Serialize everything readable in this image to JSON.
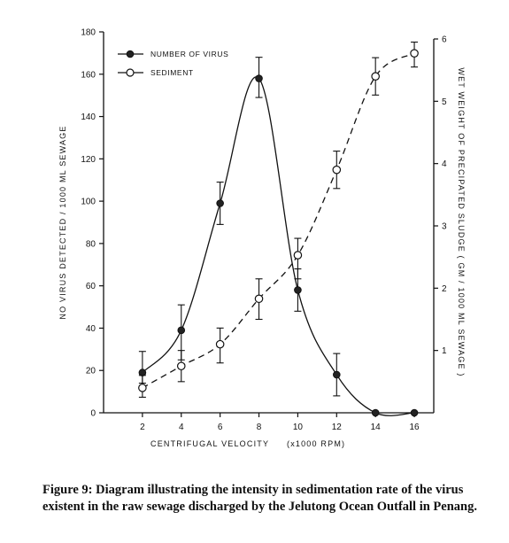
{
  "chart_data": {
    "type": "line",
    "x": [
      2,
      4,
      6,
      8,
      10,
      12,
      14,
      16
    ],
    "x_ticks": [
      "2",
      "4",
      "6",
      "8",
      "10",
      "12",
      "14",
      "16"
    ],
    "xlabel": "CENTRIFUGAL  VELOCITY",
    "xlabel_unit": "(x1000  RPM)",
    "xlim": [
      0,
      17
    ],
    "ylabel_left": "NO  VIRUS  DETECTED / 1000  ML  SEWAGE",
    "ylim_left": [
      0,
      180
    ],
    "y_ticks_left": [
      "0",
      "20",
      "40",
      "60",
      "80",
      "100",
      "120",
      "140",
      "160",
      "180"
    ],
    "ylabel_right": "WET  WEIGHT  OF  PRECIPATED  SLUDGE  ( GM / 1000  ML  SEWAGE )",
    "ylim_right": [
      0,
      6
    ],
    "y_ticks_right": [
      "1",
      "2",
      "3",
      "4",
      "5",
      "6"
    ],
    "legend_position": "top-left",
    "series": [
      {
        "name": "NUMBER  OF  VIRUS",
        "axis": "left",
        "marker": "filled-circle",
        "line_style": "solid",
        "values": [
          19,
          39,
          99,
          158,
          58,
          18,
          0,
          0
        ],
        "err_low": [
          14,
          25,
          89,
          149,
          48,
          8,
          null,
          null
        ],
        "err_high": [
          29,
          51,
          109,
          168,
          68,
          28,
          null,
          null
        ]
      },
      {
        "name": "SEDIMENT",
        "axis": "right",
        "marker": "open-circle",
        "line_style": "dashed",
        "values": [
          0.4,
          0.75,
          1.1,
          1.83,
          2.53,
          3.9,
          5.4,
          5.77
        ],
        "err_low": [
          0.25,
          0.5,
          0.8,
          1.5,
          2.15,
          3.6,
          5.1,
          5.55
        ],
        "err_high": [
          0.6,
          1.0,
          1.36,
          2.15,
          2.8,
          4.2,
          5.7,
          5.95
        ]
      }
    ]
  },
  "caption": "Figure 9: Diagram illustrating the intensity in sedimentation rate of the virus existent in the raw sewage discharged by the Jelutong Ocean Outfall in Penang."
}
